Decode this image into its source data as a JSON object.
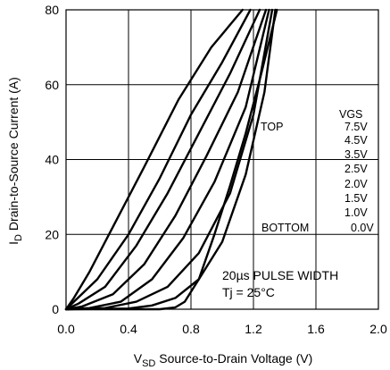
{
  "chart_data": {
    "type": "line",
    "xlabel_prefix": "V",
    "xlabel_sub": "SD",
    "xlabel_rest": " Source-to-Drain Voltage (V)",
    "ylabel_prefix": "I",
    "ylabel_sub": "D",
    "ylabel_rest": " Drain-to-Source Current (A)",
    "xlim": [
      0,
      2.0
    ],
    "ylim": [
      0,
      80
    ],
    "xticks": [
      "0.0",
      "0.4",
      "0.8",
      "1.2",
      "1.6",
      "2.0"
    ],
    "yticks": [
      "0",
      "20",
      "40",
      "60",
      "80"
    ],
    "grid": true,
    "legend": {
      "header": "VGS",
      "top_label": "TOP",
      "bottom_label": "BOTTOM",
      "entries": [
        "7.5V",
        "4.5V",
        "3.5V",
        "2.5V",
        "2.0V",
        "1.5V",
        "1.0V",
        "0.0V"
      ]
    },
    "annotation": {
      "line1": "20µs PULSE WIDTH",
      "line2": "Tj = 25°C"
    },
    "series": [
      {
        "x": [
          0,
          0.05,
          0.15,
          0.3,
          0.5,
          0.72,
          0.93,
          1.13
        ],
        "y": [
          0,
          3,
          10,
          22,
          38,
          56,
          70,
          80
        ]
      },
      {
        "x": [
          0,
          0.05,
          0.2,
          0.4,
          0.6,
          0.8,
          1.0,
          1.18
        ],
        "y": [
          0,
          2,
          8,
          20,
          35,
          52,
          66,
          80
        ]
      },
      {
        "x": [
          0,
          0.08,
          0.25,
          0.45,
          0.65,
          0.85,
          1.05,
          1.24
        ],
        "y": [
          0,
          1.5,
          6,
          17,
          31,
          47,
          63,
          80
        ]
      },
      {
        "x": [
          0,
          0.1,
          0.3,
          0.5,
          0.7,
          0.9,
          1.1,
          1.28
        ],
        "y": [
          0,
          0.7,
          4,
          12,
          25,
          41,
          58,
          80
        ]
      },
      {
        "x": [
          0,
          0.15,
          0.35,
          0.55,
          0.75,
          0.95,
          1.15,
          1.3
        ],
        "y": [
          0,
          0.3,
          2,
          8,
          19,
          34,
          54,
          80
        ]
      },
      {
        "x": [
          0,
          0.25,
          0.45,
          0.65,
          0.85,
          1.05,
          1.2,
          1.32
        ],
        "y": [
          0,
          0.3,
          2,
          6,
          15,
          31,
          52,
          80
        ]
      },
      {
        "x": [
          0,
          0.4,
          0.55,
          0.7,
          0.85,
          1.0,
          1.15,
          1.27,
          1.34
        ],
        "y": [
          0,
          0.2,
          1,
          3,
          8,
          18,
          36,
          58,
          80
        ]
      },
      {
        "x": [
          0,
          0.6,
          0.7,
          0.76,
          0.85,
          0.95,
          1.05,
          1.15,
          1.25,
          1.35
        ],
        "y": [
          0,
          0,
          0.5,
          2,
          8,
          20,
          33,
          47,
          63,
          80
        ]
      }
    ]
  }
}
